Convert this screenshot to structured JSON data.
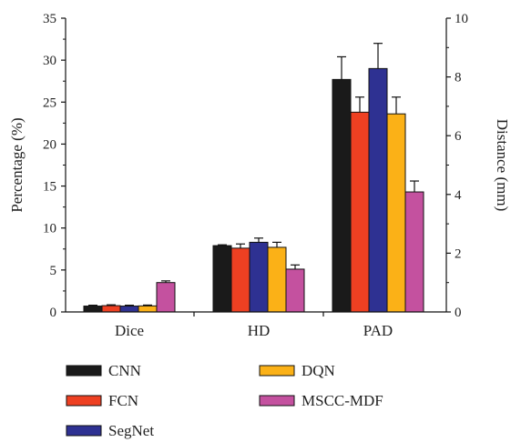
{
  "chart_data": {
    "type": "bar",
    "categories": [
      "Dice",
      "HD",
      "PAD"
    ],
    "series": [
      {
        "name": "CNN",
        "color": "#1a1a1a",
        "values": [
          0.7,
          7.9,
          27.7
        ],
        "errors": [
          0.1,
          0.1,
          2.7
        ]
      },
      {
        "name": "FCN",
        "color": "#ee4022",
        "values": [
          0.75,
          7.6,
          23.8
        ],
        "errors": [
          0.1,
          0.5,
          1.8
        ]
      },
      {
        "name": "SegNet",
        "color": "#2e3192",
        "values": [
          0.7,
          8.3,
          29.0
        ],
        "errors": [
          0.1,
          0.5,
          3.0
        ]
      },
      {
        "name": "DQN",
        "color": "#fbb117",
        "values": [
          0.72,
          7.7,
          23.6
        ],
        "errors": [
          0.1,
          0.6,
          2.0
        ]
      },
      {
        "name": "MSCC-MDF",
        "color": "#c4519f",
        "values": [
          3.5,
          5.1,
          14.3
        ],
        "errors": [
          0.2,
          0.5,
          1.3
        ]
      }
    ],
    "ylabel_left": "Percentage (%)",
    "ylabel_right": "Distance (mm)",
    "ylim_left": [
      0,
      35
    ],
    "yticks_left": [
      0,
      5,
      10,
      15,
      20,
      25,
      30,
      35
    ],
    "ylim_right": [
      0,
      10
    ],
    "yticks_right": [
      0,
      2,
      4,
      6,
      8,
      10
    ],
    "grid": false,
    "legend_position": "bottom"
  }
}
